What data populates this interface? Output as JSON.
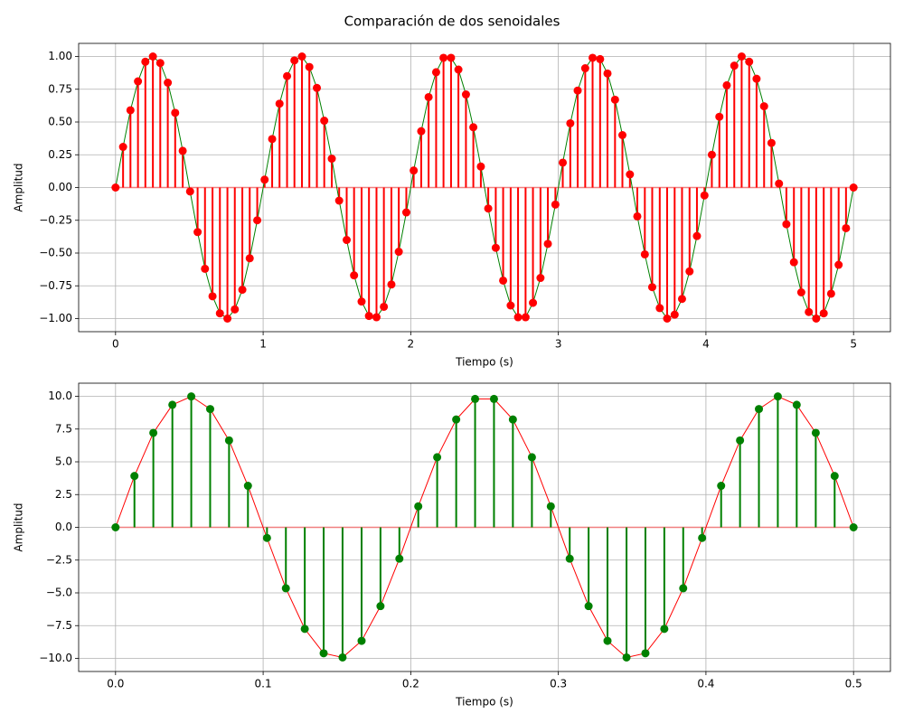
{
  "title": "Comparación de dos senoidales",
  "chart_data": [
    {
      "type": "stem",
      "xlabel": "Tiempo (s)",
      "ylabel": "Amplitud",
      "x": [
        0,
        0.051,
        0.101,
        0.152,
        0.202,
        0.253,
        0.303,
        0.354,
        0.404,
        0.455,
        0.505,
        0.556,
        0.606,
        0.657,
        0.707,
        0.758,
        0.808,
        0.859,
        0.909,
        0.96,
        1.01,
        1.061,
        1.111,
        1.162,
        1.212,
        1.263,
        1.313,
        1.364,
        1.414,
        1.465,
        1.515,
        1.566,
        1.616,
        1.667,
        1.717,
        1.768,
        1.818,
        1.869,
        1.919,
        1.97,
        2.02,
        2.071,
        2.121,
        2.172,
        2.222,
        2.273,
        2.323,
        2.374,
        2.424,
        2.475,
        2.525,
        2.576,
        2.626,
        2.677,
        2.727,
        2.778,
        2.828,
        2.879,
        2.929,
        2.98,
        3.03,
        3.081,
        3.131,
        3.182,
        3.232,
        3.283,
        3.333,
        3.384,
        3.434,
        3.485,
        3.535,
        3.586,
        3.636,
        3.687,
        3.737,
        3.788,
        3.838,
        3.889,
        3.939,
        3.99,
        4.04,
        4.091,
        4.141,
        4.192,
        4.242,
        4.293,
        4.343,
        4.394,
        4.444,
        4.495,
        4.545,
        4.596,
        4.646,
        4.697,
        4.747,
        4.798,
        4.848,
        4.899,
        4.949,
        5.0
      ],
      "values": [
        0,
        0.31,
        0.59,
        0.81,
        0.96,
        1.0,
        0.95,
        0.8,
        0.57,
        0.28,
        -0.03,
        -0.34,
        -0.62,
        -0.83,
        -0.96,
        -1.0,
        -0.93,
        -0.78,
        -0.54,
        -0.25,
        0.06,
        0.37,
        0.64,
        0.85,
        0.97,
        1.0,
        0.92,
        0.76,
        0.51,
        0.22,
        -0.1,
        -0.4,
        -0.67,
        -0.87,
        -0.98,
        -0.99,
        -0.91,
        -0.74,
        -0.49,
        -0.19,
        0.13,
        0.43,
        0.69,
        0.88,
        0.99,
        0.99,
        0.9,
        0.71,
        0.46,
        0.16,
        -0.16,
        -0.46,
        -0.71,
        -0.9,
        -0.99,
        -0.99,
        -0.88,
        -0.69,
        -0.43,
        -0.13,
        0.19,
        0.49,
        0.74,
        0.91,
        0.99,
        0.98,
        0.87,
        0.67,
        0.4,
        0.1,
        -0.22,
        -0.51,
        -0.76,
        -0.92,
        -1.0,
        -0.97,
        -0.85,
        -0.64,
        -0.37,
        -0.06,
        0.25,
        0.54,
        0.78,
        0.93,
        1.0,
        0.96,
        0.83,
        0.62,
        0.34,
        0.03,
        -0.28,
        -0.57,
        -0.8,
        -0.95,
        -1.0,
        -0.96,
        -0.81,
        -0.59,
        -0.31,
        0
      ],
      "line_color": "#008000",
      "marker_color": "#ff0000",
      "stem_color": "#ff0000",
      "baseline_color": "#f08080",
      "xlim": [
        -0.25,
        5.25
      ],
      "xticks": [
        0,
        1,
        2,
        3,
        4,
        5
      ],
      "ylim": [
        -1.1,
        1.1
      ],
      "yticks": [
        {
          "value": -1,
          "label": "−1.00"
        },
        {
          "value": -0.75,
          "label": "−0.75"
        },
        {
          "value": -0.5,
          "label": "−0.50"
        },
        {
          "value": -0.25,
          "label": "−0.25"
        },
        {
          "value": 0,
          "label": "0.00"
        },
        {
          "value": 0.25,
          "label": "0.25"
        },
        {
          "value": 0.5,
          "label": "0.50"
        },
        {
          "value": 0.75,
          "label": "0.75"
        },
        {
          "value": 1,
          "label": "1.00"
        }
      ],
      "grid": true
    },
    {
      "type": "stem",
      "xlabel": "Tiempo (s)",
      "ylabel": "Amplitud",
      "x": [
        0,
        0.0128,
        0.0256,
        0.0385,
        0.0513,
        0.0641,
        0.0769,
        0.0897,
        0.1026,
        0.1154,
        0.1282,
        0.141,
        0.1538,
        0.1667,
        0.1795,
        0.1923,
        0.2051,
        0.2179,
        0.2308,
        0.2436,
        0.2564,
        0.2692,
        0.2821,
        0.2949,
        0.3077,
        0.3205,
        0.3333,
        0.3462,
        0.359,
        0.3718,
        0.3846,
        0.3974,
        0.4103,
        0.4231,
        0.4359,
        0.4487,
        0.4615,
        0.4744,
        0.4872,
        0.5
      ],
      "values": [
        0,
        3.92,
        7.21,
        9.35,
        9.99,
        9.03,
        6.63,
        3.17,
        -0.81,
        -4.65,
        -7.75,
        -9.61,
        -9.93,
        -8.66,
        -6.01,
        -2.39,
        1.6,
        5.35,
        8.23,
        9.8,
        9.8,
        8.23,
        5.35,
        1.6,
        -2.39,
        -6.01,
        -8.66,
        -9.93,
        -9.61,
        -7.75,
        -4.65,
        -0.81,
        3.17,
        6.63,
        9.03,
        9.99,
        9.35,
        7.21,
        3.92,
        0
      ],
      "line_color": "#ff0000",
      "marker_color": "#008000",
      "stem_color": "#008000",
      "baseline_color": "#f08080",
      "xlim": [
        -0.025,
        0.525
      ],
      "xticks": [
        {
          "value": 0,
          "label": "0.0"
        },
        {
          "value": 0.1,
          "label": "0.1"
        },
        {
          "value": 0.2,
          "label": "0.2"
        },
        {
          "value": 0.3,
          "label": "0.3"
        },
        {
          "value": 0.4,
          "label": "0.4"
        },
        {
          "value": 0.5,
          "label": "0.5"
        }
      ],
      "ylim": [
        -11,
        11
      ],
      "yticks": [
        {
          "value": -10,
          "label": "−10.0"
        },
        {
          "value": -7.5,
          "label": "−7.5"
        },
        {
          "value": -5,
          "label": "−5.0"
        },
        {
          "value": -2.5,
          "label": "−2.5"
        },
        {
          "value": 0,
          "label": "0.0"
        },
        {
          "value": 2.5,
          "label": "2.5"
        },
        {
          "value": 5,
          "label": "5.0"
        },
        {
          "value": 7.5,
          "label": "7.5"
        },
        {
          "value": 10,
          "label": "10.0"
        }
      ],
      "grid": true
    }
  ]
}
